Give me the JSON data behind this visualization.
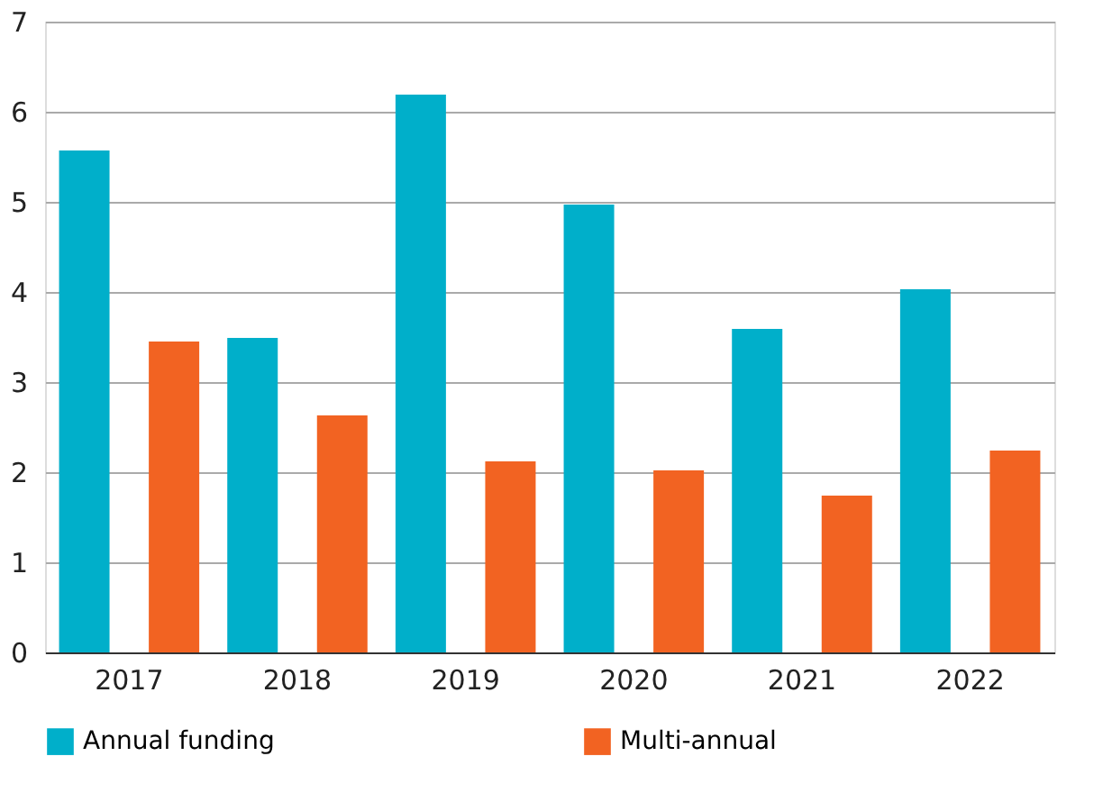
{
  "chart_data": {
    "type": "bar",
    "categories": [
      "2017",
      "2018",
      "2019",
      "2020",
      "2021",
      "2022"
    ],
    "series": [
      {
        "name": "Annual funding",
        "color": "#00afca",
        "values": [
          5.57,
          3.49,
          6.19,
          4.97,
          3.59,
          4.03
        ]
      },
      {
        "name": "Multi-annual",
        "color": "#f26322",
        "values": [
          3.45,
          2.63,
          2.12,
          2.02,
          1.74,
          2.24
        ]
      }
    ],
    "ylim": [
      0,
      7
    ],
    "yticks": [
      0,
      1,
      2,
      3,
      4,
      5,
      6,
      7
    ],
    "grid": "y",
    "legend": "bottom"
  }
}
